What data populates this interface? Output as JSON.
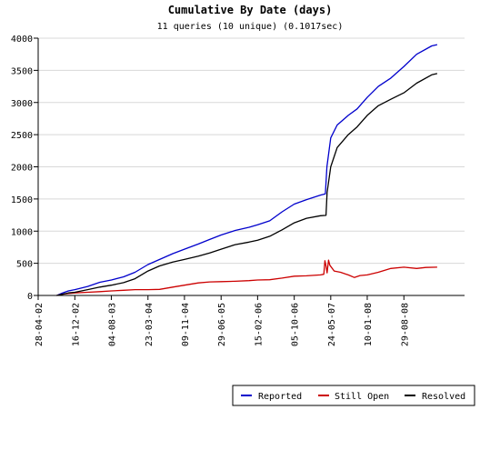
{
  "chart_data": {
    "type": "line",
    "title": "Cumulative By Date (days)",
    "subtitle": "11 queries (10 unique) (0.1017sec)",
    "xlabel": "",
    "ylabel": "",
    "ylim": [
      0,
      4000
    ],
    "yticks": [
      0,
      500,
      1000,
      1500,
      2000,
      2500,
      3000,
      3500,
      4000
    ],
    "xlim": [
      "2002-04-28",
      "2009-09-17"
    ],
    "xticks": [
      {
        "date": "2002-04-28",
        "label": "28-04-02"
      },
      {
        "date": "2002-12-16",
        "label": "16-12-02"
      },
      {
        "date": "2003-08-04",
        "label": "04-08-03"
      },
      {
        "date": "2004-03-23",
        "label": "23-03-04"
      },
      {
        "date": "2004-11-09",
        "label": "09-11-04"
      },
      {
        "date": "2005-06-29",
        "label": "29-06-05"
      },
      {
        "date": "2006-02-15",
        "label": "15-02-06"
      },
      {
        "date": "2006-10-05",
        "label": "05-10-06"
      },
      {
        "date": "2007-05-24",
        "label": "24-05-07"
      },
      {
        "date": "2008-01-10",
        "label": "10-01-08"
      },
      {
        "date": "2008-08-29",
        "label": "29-08-08"
      }
    ],
    "grid": true,
    "legend_position": "bottom-right",
    "series": [
      {
        "name": "Reported",
        "color": "#0000cc",
        "points": [
          [
            "2002-08-24",
            0
          ],
          [
            "2002-09-30",
            40
          ],
          [
            "2002-11-05",
            70
          ],
          [
            "2002-12-16",
            90
          ],
          [
            "2003-03-07",
            140
          ],
          [
            "2003-05-23",
            205
          ],
          [
            "2003-08-04",
            240
          ],
          [
            "2003-10-21",
            290
          ],
          [
            "2004-01-01",
            360
          ],
          [
            "2004-03-23",
            480
          ],
          [
            "2004-06-05",
            560
          ],
          [
            "2004-08-27",
            650
          ],
          [
            "2004-11-09",
            720
          ],
          [
            "2005-02-05",
            800
          ],
          [
            "2005-04-18",
            870
          ],
          [
            "2005-06-29",
            940
          ],
          [
            "2005-09-26",
            1010
          ],
          [
            "2005-12-23",
            1060
          ],
          [
            "2006-02-15",
            1100
          ],
          [
            "2006-05-03",
            1160
          ],
          [
            "2006-07-20",
            1300
          ],
          [
            "2006-10-05",
            1420
          ],
          [
            "2006-12-22",
            1490
          ],
          [
            "2007-03-20",
            1560
          ],
          [
            "2007-04-20",
            1580
          ],
          [
            "2007-04-30",
            2000
          ],
          [
            "2007-05-24",
            2450
          ],
          [
            "2007-07-04",
            2650
          ],
          [
            "2007-09-12",
            2800
          ],
          [
            "2007-11-07",
            2900
          ],
          [
            "2008-01-10",
            3080
          ],
          [
            "2008-03-20",
            3250
          ],
          [
            "2008-06-07",
            3380
          ],
          [
            "2008-08-29",
            3560
          ],
          [
            "2008-11-18",
            3750
          ],
          [
            "2009-02-21",
            3880
          ],
          [
            "2009-03-28",
            3900
          ]
        ]
      },
      {
        "name": "Still Open",
        "color": "#cc0000",
        "points": [
          [
            "2002-08-24",
            0
          ],
          [
            "2002-09-30",
            20
          ],
          [
            "2002-11-05",
            30
          ],
          [
            "2002-12-16",
            40
          ],
          [
            "2003-03-07",
            50
          ],
          [
            "2003-05-23",
            60
          ],
          [
            "2003-08-04",
            70
          ],
          [
            "2003-10-21",
            80
          ],
          [
            "2004-01-01",
            90
          ],
          [
            "2004-03-23",
            90
          ],
          [
            "2004-06-05",
            95
          ],
          [
            "2004-08-27",
            130
          ],
          [
            "2004-11-09",
            160
          ],
          [
            "2005-02-05",
            195
          ],
          [
            "2005-04-18",
            210
          ],
          [
            "2005-06-29",
            215
          ],
          [
            "2005-09-26",
            220
          ],
          [
            "2005-12-23",
            230
          ],
          [
            "2006-02-15",
            240
          ],
          [
            "2006-05-03",
            245
          ],
          [
            "2006-07-20",
            270
          ],
          [
            "2006-10-05",
            300
          ],
          [
            "2006-12-22",
            305
          ],
          [
            "2007-03-20",
            320
          ],
          [
            "2007-04-10",
            330
          ],
          [
            "2007-04-17",
            540
          ],
          [
            "2007-04-24",
            460
          ],
          [
            "2007-05-01",
            350
          ],
          [
            "2007-05-10",
            550
          ],
          [
            "2007-05-18",
            470
          ],
          [
            "2007-06-15",
            380
          ],
          [
            "2007-07-25",
            360
          ],
          [
            "2007-09-12",
            320
          ],
          [
            "2007-10-20",
            280
          ],
          [
            "2007-11-25",
            310
          ],
          [
            "2008-01-10",
            320
          ],
          [
            "2008-03-20",
            360
          ],
          [
            "2008-06-07",
            420
          ],
          [
            "2008-08-29",
            440
          ],
          [
            "2008-11-18",
            420
          ],
          [
            "2009-01-15",
            435
          ],
          [
            "2009-03-28",
            440
          ]
        ]
      },
      {
        "name": "Resolved",
        "color": "#000000",
        "points": [
          [
            "2002-08-24",
            0
          ],
          [
            "2002-09-30",
            20
          ],
          [
            "2002-11-05",
            40
          ],
          [
            "2002-12-16",
            50
          ],
          [
            "2003-03-07",
            90
          ],
          [
            "2003-05-23",
            130
          ],
          [
            "2003-08-04",
            160
          ],
          [
            "2003-10-21",
            200
          ],
          [
            "2004-01-01",
            260
          ],
          [
            "2004-03-23",
            380
          ],
          [
            "2004-06-05",
            460
          ],
          [
            "2004-08-27",
            520
          ],
          [
            "2004-11-09",
            560
          ],
          [
            "2005-02-05",
            610
          ],
          [
            "2005-04-18",
            660
          ],
          [
            "2005-06-29",
            720
          ],
          [
            "2005-09-26",
            790
          ],
          [
            "2005-12-23",
            830
          ],
          [
            "2006-02-15",
            860
          ],
          [
            "2006-05-03",
            920
          ],
          [
            "2006-07-20",
            1020
          ],
          [
            "2006-10-05",
            1130
          ],
          [
            "2006-12-22",
            1200
          ],
          [
            "2007-03-20",
            1240
          ],
          [
            "2007-04-24",
            1245
          ],
          [
            "2007-05-01",
            1600
          ],
          [
            "2007-05-24",
            2000
          ],
          [
            "2007-07-04",
            2300
          ],
          [
            "2007-09-12",
            2500
          ],
          [
            "2007-11-07",
            2620
          ],
          [
            "2008-01-10",
            2800
          ],
          [
            "2008-03-20",
            2950
          ],
          [
            "2008-06-07",
            3050
          ],
          [
            "2008-08-29",
            3150
          ],
          [
            "2008-11-18",
            3300
          ],
          [
            "2009-02-21",
            3430
          ],
          [
            "2009-03-28",
            3450
          ]
        ]
      }
    ]
  }
}
